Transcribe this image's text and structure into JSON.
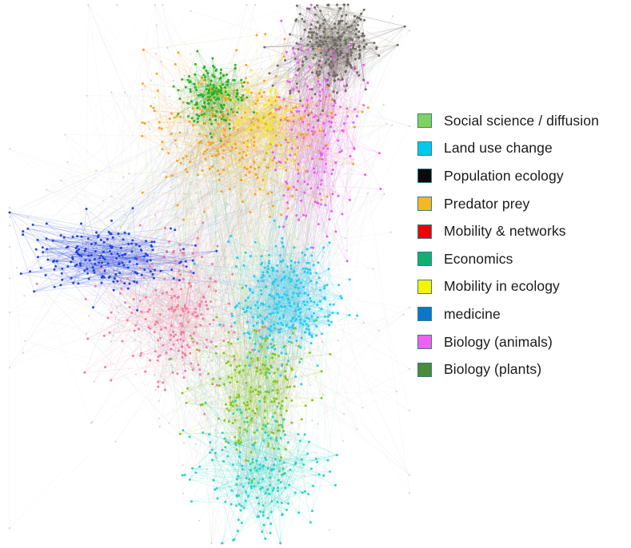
{
  "legend": {
    "items": [
      {
        "label": "Social science / diffusion",
        "color": "#7fd35a"
      },
      {
        "label": "Land use change",
        "color": "#00c8f0"
      },
      {
        "label": "Population ecology",
        "color": "#0a0a0a"
      },
      {
        "label": "Predator prey",
        "color": "#f5b820"
      },
      {
        "label": "Mobility & networks",
        "color": "#f00000"
      },
      {
        "label": "Economics",
        "color": "#10b070"
      },
      {
        "label": "Mobility in ecology",
        "color": "#f5f500"
      },
      {
        "label": "medicine",
        "color": "#0a78c8"
      },
      {
        "label": "Biology (animals)",
        "color": "#f060f0"
      },
      {
        "label": "Biology (plants)",
        "color": "#4a8a3a"
      }
    ]
  },
  "network": {
    "clusters": [
      {
        "name": "grey-hub",
        "color": "#6e6760"
      },
      {
        "name": "magenta",
        "color": "#ee55ee"
      },
      {
        "name": "green-top",
        "color": "#22b022"
      },
      {
        "name": "orange",
        "color": "#f6a21f"
      },
      {
        "name": "yellow",
        "color": "#f2ec2a"
      },
      {
        "name": "blue",
        "color": "#1e3ee0"
      },
      {
        "name": "pink",
        "color": "#f07a9a"
      },
      {
        "name": "cyan",
        "color": "#1ecbf2"
      },
      {
        "name": "lime",
        "color": "#86c41a"
      },
      {
        "name": "teal",
        "color": "#24d2c0"
      },
      {
        "name": "periphery",
        "color": "#c8c8c8"
      }
    ]
  }
}
